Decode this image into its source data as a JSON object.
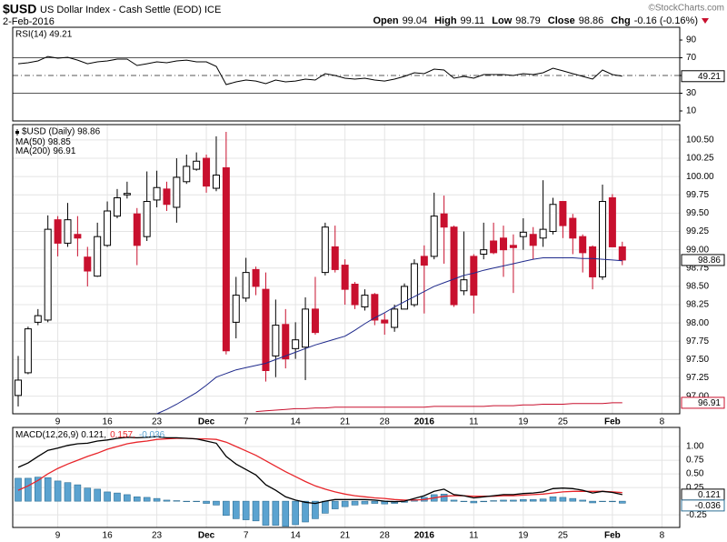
{
  "header": {
    "symbol": "$USD",
    "name": "US Dollar Index - Cash Settle (EOD) ICE",
    "date": "2-Feb-2016",
    "credit": "©StockCharts.com",
    "quote": [
      {
        "label": "Open",
        "value": "99.04"
      },
      {
        "label": "High",
        "value": "99.11"
      },
      {
        "label": "Low",
        "value": "98.79"
      },
      {
        "label": "Close",
        "value": "98.86"
      },
      {
        "label": "Chg",
        "value": "-0.16 (-0.16%)"
      }
    ]
  },
  "chart_data": [
    {
      "type": "line",
      "legend": "RSI(14) 49.21",
      "x": [
        0,
        1,
        2,
        3,
        4,
        5,
        6,
        7,
        8,
        9,
        10,
        11,
        12,
        13,
        14,
        15,
        16,
        17,
        18,
        19,
        20,
        21,
        22,
        23,
        24,
        25,
        26,
        27,
        28,
        29,
        30,
        31,
        32,
        33,
        34,
        35,
        36,
        37,
        38,
        39,
        40,
        41,
        42,
        43,
        44,
        45,
        46,
        47,
        48,
        49,
        50,
        51,
        52,
        53,
        54,
        55,
        56,
        57,
        58,
        59,
        60,
        61
      ],
      "xlim": [
        -0.55,
        66.8
      ],
      "ylim": [
        -1.3,
        104.4
      ],
      "yticks": [
        90,
        70,
        50,
        30,
        10
      ],
      "bands": [
        70,
        30
      ],
      "midline": 50,
      "series": [
        {
          "color": "#000000",
          "values": [
            63.3,
            64.4,
            66.4,
            71.5,
            69.5,
            70.5,
            67.4,
            63.3,
            65.4,
            66.4,
            68.5,
            68.5,
            61.3,
            63.3,
            65.4,
            64.4,
            66.4,
            67.4,
            65.4,
            65.4,
            60.3,
            39.7,
            42.8,
            44.9,
            43.8,
            40.8,
            44.9,
            42.8,
            43.8,
            45.9,
            44.9,
            52.1,
            50.0,
            46.9,
            45.9,
            46.9,
            44.9,
            43.8,
            45.9,
            49.0,
            53.1,
            52.1,
            57.2,
            56.2,
            46.9,
            49.0,
            46.9,
            51.0,
            51.0,
            51.0,
            50.0,
            52.1,
            51.0,
            53.1,
            58.2,
            55.2,
            52.1,
            49.0,
            45.9,
            56.2,
            51.0,
            49.21
          ]
        }
      ]
    },
    {
      "type": "candlestick",
      "legend": "$USD (Daily) 98.86",
      "x": [
        0,
        1,
        2,
        3,
        4,
        5,
        6,
        7,
        8,
        9,
        10,
        11,
        12,
        13,
        14,
        15,
        16,
        17,
        18,
        19,
        20,
        21,
        22,
        23,
        24,
        25,
        26,
        27,
        28,
        29,
        30,
        31,
        32,
        33,
        34,
        35,
        36,
        37,
        38,
        39,
        40,
        41,
        42,
        43,
        44,
        45,
        46,
        47,
        48,
        49,
        50,
        51,
        52,
        53,
        54,
        55,
        56,
        57,
        58,
        59,
        60,
        61
      ],
      "xlim": [
        -0.55,
        66.8
      ],
      "xticks": [
        {
          "value": 4,
          "label": "9"
        },
        {
          "value": 9,
          "label": "16"
        },
        {
          "value": 14,
          "label": "23"
        },
        {
          "value": 19,
          "label": "Dec"
        },
        {
          "value": 23,
          "label": "7"
        },
        {
          "value": 28,
          "label": "14"
        },
        {
          "value": 33,
          "label": "21"
        },
        {
          "value": 37,
          "label": "28"
        },
        {
          "value": 41,
          "label": "2016"
        },
        {
          "value": 46,
          "label": "11"
        },
        {
          "value": 51,
          "label": "19"
        },
        {
          "value": 55,
          "label": "25"
        },
        {
          "value": 60,
          "label": "Feb"
        },
        {
          "value": 65,
          "label": "8"
        }
      ],
      "ylim": [
        96.76,
        100.71
      ],
      "yticks": [
        {
          "value": 100.5,
          "label": "100.50"
        },
        100.25,
        {
          "value": 100,
          "label": "100.00"
        },
        99.75,
        {
          "value": 99.5,
          "label": "99.50"
        },
        99.25,
        {
          "value": 99,
          "label": "99.00"
        },
        98.75,
        {
          "value": 98.5,
          "label": "98.50"
        },
        98.25,
        {
          "value": 98,
          "label": "98.00"
        },
        97.75,
        {
          "value": 97.5,
          "label": "97.50"
        },
        97.25,
        {
          "value": 97,
          "label": "97.00"
        }
      ],
      "grid": true,
      "up_color": "#ffffff",
      "down_color": "#c8102e",
      "open": [
        97.01,
        97.32,
        98.01,
        98.04,
        99.41,
        99.09,
        99.21,
        98.9,
        98.64,
        99.06,
        99.46,
        99.75,
        99.49,
        99.18,
        99.68,
        99.83,
        99.58,
        99.93,
        100.1,
        100.25,
        99.84,
        100.12,
        98.01,
        98.34,
        98.73,
        98.46,
        97.55,
        97.98,
        97.65,
        97.67,
        98.19,
        98.69,
        99.04,
        98.79,
        98.53,
        98.22,
        98.39,
        98.04,
        97.94,
        98.19,
        98.25,
        98.91,
        98.91,
        99.49,
        99.31,
        98.44,
        98.91,
        98.94,
        99.12,
        99.16,
        99.06,
        99.18,
        99.21,
        99.16,
        99.25,
        99.66,
        99.43,
        99.18,
        99.04,
        98.63,
        99.71,
        99.04
      ],
      "high": [
        97.55,
        97.95,
        98.19,
        99.47,
        99.46,
        99.64,
        99.46,
        99.04,
        99.37,
        99.66,
        99.83,
        99.93,
        99.57,
        100.07,
        100.08,
        99.93,
        100.25,
        100.3,
        100.33,
        100.3,
        100.55,
        100.61,
        98.63,
        98.89,
        98.77,
        98.69,
        98.32,
        98.19,
        98.01,
        98.35,
        98.63,
        99.37,
        99.33,
        98.87,
        98.56,
        98.46,
        98.41,
        98.13,
        98.25,
        98.54,
        98.87,
        99.06,
        99.78,
        99.74,
        99.33,
        99.25,
        98.94,
        99.37,
        99.37,
        99.33,
        99.21,
        99.43,
        99.31,
        99.95,
        99.71,
        99.66,
        99.49,
        99.21,
        99.06,
        99.89,
        99.76,
        99.11
      ],
      "low": [
        96.86,
        97.3,
        97.97,
        98.01,
        98.91,
        99.04,
        98.91,
        98.5,
        98.63,
        99.04,
        99.43,
        99.7,
        98.79,
        99.12,
        99.58,
        99.53,
        99.37,
        99.9,
        100.08,
        99.78,
        99.8,
        97.57,
        97.79,
        98.29,
        98.38,
        97.2,
        97.26,
        97.38,
        97.51,
        97.22,
        97.84,
        98.65,
        98.69,
        98.25,
        98.19,
        98.17,
        97.97,
        97.84,
        97.88,
        98.19,
        98.22,
        98.13,
        98.87,
        98.81,
        98.22,
        98.38,
        98.13,
        98.87,
        98.94,
        98.63,
        98.41,
        99.0,
        98.87,
        99.04,
        99.21,
        99.16,
        98.94,
        98.69,
        98.46,
        98.59,
        99.04,
        98.79
      ],
      "close": [
        97.22,
        97.92,
        98.1,
        99.28,
        99.09,
        99.41,
        99.16,
        98.71,
        99.18,
        99.53,
        99.71,
        99.77,
        99.06,
        99.66,
        99.85,
        99.62,
        99.99,
        100.14,
        100.21,
        99.87,
        100.02,
        97.62,
        98.38,
        98.69,
        98.5,
        97.35,
        97.97,
        97.51,
        97.77,
        98.19,
        97.87,
        99.31,
        98.73,
        98.46,
        98.25,
        98.38,
        98.04,
        98.0,
        98.19,
        98.5,
        98.81,
        98.79,
        99.46,
        99.31,
        98.25,
        98.59,
        98.38,
        99.0,
        98.96,
        99.0,
        99.03,
        99.24,
        99.06,
        99.28,
        99.62,
        99.33,
        99.16,
        98.96,
        98.63,
        99.66,
        99.04,
        98.86
      ],
      "series": [
        {
          "name": "MA(50)",
          "color": "#1f2a8c",
          "values": [
            null,
            null,
            null,
            null,
            null,
            null,
            null,
            null,
            null,
            null,
            null,
            null,
            null,
            null,
            96.76,
            96.82,
            96.89,
            96.97,
            97.05,
            97.15,
            97.26,
            97.31,
            97.36,
            97.39,
            97.42,
            97.45,
            97.5,
            97.55,
            97.6,
            97.65,
            97.7,
            97.74,
            97.78,
            97.82,
            97.9,
            97.99,
            98.07,
            98.14,
            98.22,
            98.29,
            98.36,
            98.43,
            98.5,
            98.55,
            98.6,
            98.65,
            98.68,
            98.72,
            98.75,
            98.78,
            98.81,
            98.84,
            98.87,
            98.89,
            98.89,
            98.89,
            98.89,
            98.88,
            98.88,
            98.87,
            98.86,
            98.85
          ]
        },
        {
          "name": "MA(200)",
          "color": "#c8102e",
          "values": [
            null,
            null,
            null,
            null,
            null,
            null,
            null,
            null,
            null,
            null,
            null,
            null,
            null,
            null,
            null,
            null,
            null,
            null,
            null,
            null,
            null,
            null,
            null,
            null,
            96.79,
            96.8,
            96.81,
            96.82,
            96.83,
            96.83,
            96.84,
            96.84,
            96.85,
            96.85,
            96.85,
            96.85,
            96.85,
            96.85,
            96.85,
            96.85,
            96.85,
            96.85,
            96.86,
            96.86,
            96.86,
            96.86,
            96.86,
            96.86,
            96.87,
            96.87,
            96.87,
            96.88,
            96.88,
            96.89,
            96.89,
            96.89,
            96.9,
            96.9,
            96.9,
            96.9,
            96.91,
            96.91
          ]
        }
      ]
    },
    {
      "type": "macd",
      "legend": [
        "MACD(12,26,9) 0.121,",
        "0.157,",
        "-0.036"
      ],
      "x": [
        0,
        1,
        2,
        3,
        4,
        5,
        6,
        7,
        8,
        9,
        10,
        11,
        12,
        13,
        14,
        15,
        16,
        17,
        18,
        19,
        20,
        21,
        22,
        23,
        24,
        25,
        26,
        27,
        28,
        29,
        30,
        31,
        32,
        33,
        34,
        35,
        36,
        37,
        38,
        39,
        40,
        41,
        42,
        43,
        44,
        45,
        46,
        47,
        48,
        49,
        50,
        51,
        52,
        53,
        54,
        55,
        56,
        57,
        58,
        59,
        60,
        61
      ],
      "xlim": [
        -0.55,
        66.8
      ],
      "xticks": [
        {
          "value": 4,
          "label": "9"
        },
        {
          "value": 9,
          "label": "16"
        },
        {
          "value": 14,
          "label": "23"
        },
        {
          "value": 19,
          "label": "Dec"
        },
        {
          "value": 23,
          "label": "7"
        },
        {
          "value": 28,
          "label": "14"
        },
        {
          "value": 33,
          "label": "21"
        },
        {
          "value": 37,
          "label": "28"
        },
        {
          "value": 41,
          "label": "2016"
        },
        {
          "value": 46,
          "label": "11"
        },
        {
          "value": 51,
          "label": "19"
        },
        {
          "value": 55,
          "label": "25"
        },
        {
          "value": 60,
          "label": "Feb"
        },
        {
          "value": 65,
          "label": "8"
        }
      ],
      "ylim": [
        -0.48,
        1.35
      ],
      "yticks": [
        {
          "value": 1,
          "label": "1.00"
        },
        0.75,
        {
          "value": 0.5,
          "label": "0.50"
        },
        0.25,
        -0.25
      ],
      "grid": true,
      "series": [
        {
          "kind": "line",
          "color": "#000000",
          "values": [
            0.62,
            0.7,
            0.82,
            0.93,
            0.97,
            1.02,
            1.05,
            1.06,
            1.1,
            1.12,
            1.15,
            1.17,
            1.16,
            1.17,
            1.18,
            1.16,
            1.16,
            1.15,
            1.14,
            1.1,
            1.06,
            0.82,
            0.68,
            0.58,
            0.48,
            0.3,
            0.2,
            0.08,
            0.02,
            -0.02,
            -0.04,
            0.0,
            0.03,
            0.03,
            0.03,
            0.03,
            0.02,
            0.0,
            -0.01,
            0.0,
            0.05,
            0.1,
            0.18,
            0.22,
            0.12,
            0.1,
            0.06,
            0.08,
            0.1,
            0.12,
            0.12,
            0.14,
            0.15,
            0.17,
            0.23,
            0.24,
            0.23,
            0.2,
            0.15,
            0.18,
            0.16,
            0.121
          ]
        },
        {
          "kind": "line",
          "color": "#e8262b",
          "values": [
            0.2,
            0.28,
            0.38,
            0.5,
            0.6,
            0.68,
            0.75,
            0.82,
            0.88,
            0.95,
            1.0,
            1.05,
            1.08,
            1.1,
            1.13,
            1.14,
            1.15,
            1.15,
            1.14,
            1.14,
            1.13,
            1.08,
            1.0,
            0.92,
            0.84,
            0.74,
            0.64,
            0.54,
            0.45,
            0.36,
            0.28,
            0.22,
            0.17,
            0.13,
            0.1,
            0.08,
            0.06,
            0.05,
            0.03,
            0.02,
            0.02,
            0.03,
            0.06,
            0.09,
            0.1,
            0.1,
            0.09,
            0.09,
            0.09,
            0.1,
            0.1,
            0.11,
            0.12,
            0.13,
            0.15,
            0.17,
            0.18,
            0.18,
            0.18,
            0.18,
            0.17,
            0.157
          ]
        },
        {
          "kind": "bar",
          "color": "#5ba3d0",
          "values": [
            0.42,
            0.42,
            0.44,
            0.43,
            0.37,
            0.34,
            0.3,
            0.24,
            0.22,
            0.17,
            0.15,
            0.12,
            0.08,
            0.07,
            0.05,
            0.02,
            0.01,
            0.0,
            0.0,
            -0.04,
            -0.07,
            -0.26,
            -0.32,
            -0.34,
            -0.36,
            -0.44,
            -0.44,
            -0.46,
            -0.43,
            -0.38,
            -0.32,
            -0.22,
            -0.14,
            -0.1,
            -0.07,
            -0.05,
            -0.04,
            -0.05,
            -0.04,
            -0.02,
            0.03,
            0.07,
            0.12,
            0.13,
            0.02,
            0.0,
            -0.03,
            -0.01,
            0.01,
            0.02,
            0.02,
            0.03,
            0.03,
            0.04,
            0.08,
            0.07,
            0.05,
            0.02,
            -0.03,
            0.0,
            -0.01,
            -0.036
          ]
        }
      ]
    }
  ]
}
